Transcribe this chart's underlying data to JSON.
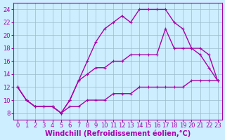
{
  "xlabel": "Windchill (Refroidissement éolien,°C)",
  "bg_color": "#cceeff",
  "line_color": "#aa00aa",
  "grid_color": "#99bbcc",
  "xlim": [
    -0.5,
    23.5
  ],
  "ylim": [
    7,
    25
  ],
  "xticks": [
    0,
    1,
    2,
    3,
    4,
    5,
    6,
    7,
    8,
    9,
    10,
    11,
    12,
    13,
    14,
    15,
    16,
    17,
    18,
    19,
    20,
    21,
    22,
    23
  ],
  "yticks": [
    8,
    10,
    12,
    14,
    16,
    18,
    20,
    22,
    24
  ],
  "curve1_x": [
    0,
    1,
    2,
    3,
    4,
    5,
    6,
    7,
    8,
    9,
    10,
    11,
    12,
    13,
    14,
    15,
    16,
    17,
    18,
    19,
    20,
    21,
    22,
    23
  ],
  "curve1_y": [
    12,
    10,
    9,
    9,
    9,
    8,
    10,
    13,
    16,
    19,
    21,
    22,
    23,
    22,
    24,
    24,
    24,
    24,
    22,
    21,
    18,
    17,
    15,
    13
  ],
  "curve2_x": [
    0,
    1,
    2,
    3,
    4,
    5,
    6,
    7,
    8,
    9,
    10,
    11,
    12,
    13,
    14,
    15,
    16,
    17,
    18,
    19,
    20,
    21,
    22,
    23
  ],
  "curve2_y": [
    12,
    10,
    9,
    9,
    9,
    8,
    10,
    13,
    14,
    15,
    15,
    16,
    16,
    17,
    17,
    17,
    17,
    21,
    18,
    18,
    18,
    18,
    17,
    13
  ],
  "curve3_x": [
    0,
    1,
    2,
    3,
    4,
    5,
    6,
    7,
    8,
    9,
    10,
    11,
    12,
    13,
    14,
    15,
    16,
    17,
    18,
    19,
    20,
    21,
    22,
    23
  ],
  "curve3_y": [
    12,
    10,
    9,
    9,
    9,
    8,
    9,
    9,
    10,
    10,
    10,
    11,
    11,
    11,
    12,
    12,
    12,
    12,
    12,
    12,
    13,
    13,
    13,
    13
  ],
  "marker_size": 3.5,
  "line_width": 1.0,
  "font_size": 7,
  "tick_font_size": 6
}
